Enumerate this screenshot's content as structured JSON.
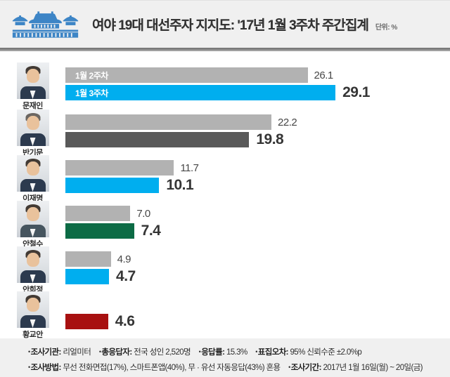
{
  "header": {
    "title": "여야 19대 대선주자 지지도: '17년 1월 3주차 주간집계",
    "unit_label": "단위: %",
    "logo": "blue-house-icon",
    "logo_color": "#3d85c6"
  },
  "chart_data": {
    "type": "bar",
    "orientation": "horizontal",
    "unit": "%",
    "title": "여야 19대 대선주자 지지도: '17년 1월 3주차 주간집계",
    "legend": [
      "1월 2주차",
      "1월 3주차"
    ],
    "legend_position": "inside-first-row-bars",
    "grid": false,
    "xlim": [
      0,
      32
    ],
    "week2_color": "#b2b2b2",
    "categories": [
      "문재인",
      "반기문",
      "이재명",
      "안철수",
      "안희정",
      "황교안"
    ],
    "rows": [
      {
        "name": "문재인",
        "week2": "26.1",
        "week3": "29.1",
        "week3_color": "#00aeef"
      },
      {
        "name": "반기문",
        "week2": "22.2",
        "week3": "19.8",
        "week3_color": "#595959"
      },
      {
        "name": "이재명",
        "week2": "11.7",
        "week3": "10.1",
        "week3_color": "#00aeef"
      },
      {
        "name": "안철수",
        "week2": "7.0",
        "week3": "7.4",
        "week3_color": "#0c6b45"
      },
      {
        "name": "안희정",
        "week2": "4.9",
        "week3": "4.7",
        "week3_color": "#00aeef"
      },
      {
        "name": "황교안",
        "week2": null,
        "week3": "4.6",
        "week3_color": "#a81010"
      }
    ]
  },
  "footer": {
    "bullet": "•",
    "line1": [
      {
        "label": "조사기관:",
        "text": " 리얼미터"
      },
      {
        "label": "총응답자:",
        "text": " 전국 성인 2,520명"
      },
      {
        "label": "응답률:",
        "text": " 15.3%"
      },
      {
        "label": "표집오차:",
        "text": " 95% 신뢰수준 ±2.0%p"
      }
    ],
    "line2": [
      {
        "label": "조사방법:",
        "text": " 무선 전화면접(17%), 스마트폰앱(40%), 무 · 유선 자동응답(43%) 혼용"
      },
      {
        "label": "조사기간:",
        "text": " 2017년 1월 16일(월) ~ 20일(금)"
      }
    ]
  }
}
